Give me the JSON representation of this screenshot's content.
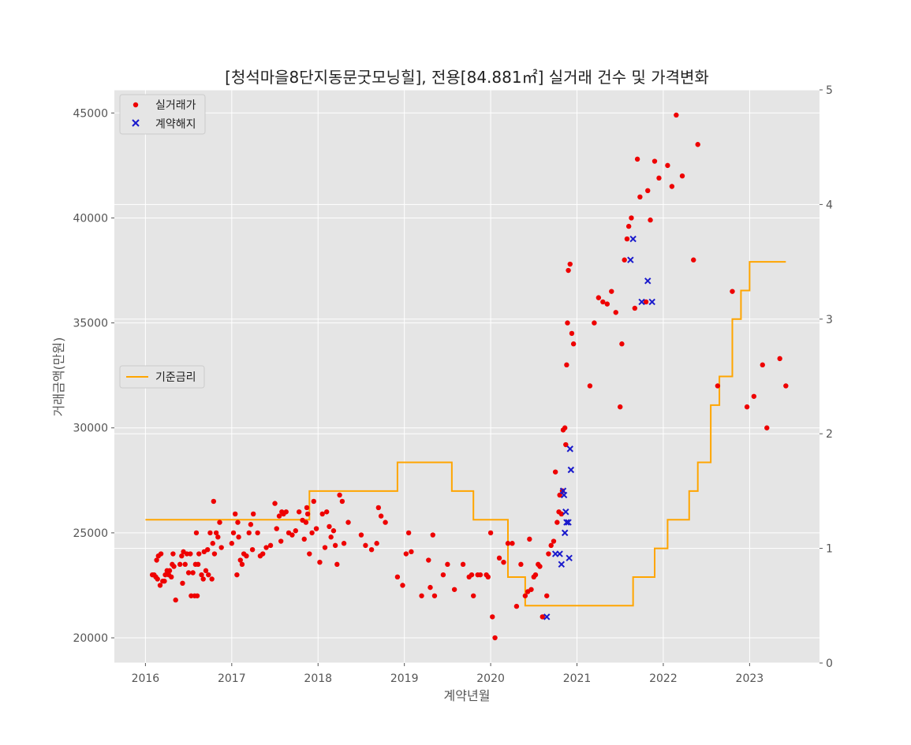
{
  "chart_data": {
    "type": "scatter",
    "title": "[청석마을8단지동문굿모닝힐], 전용[84.881㎡] 실거래 건수 및 가격변화",
    "xlabel": "계약년월",
    "ylabel": "거래금액(만원)",
    "xlim": [
      2015.64,
      2023.81
    ],
    "ylim": [
      18800,
      46100
    ],
    "y2lim": [
      0,
      5
    ],
    "x_ticks": [
      "2016",
      "2017",
      "2018",
      "2019",
      "2020",
      "2021",
      "2022",
      "2023"
    ],
    "y_ticks": [
      20000,
      25000,
      30000,
      35000,
      40000,
      45000
    ],
    "y_tick_labels": [
      "20000",
      "25000",
      "30000",
      "35000",
      "40000",
      "45000"
    ],
    "y2_ticks": [
      0,
      1,
      2,
      3,
      4,
      5
    ],
    "y2_tick_labels": [
      "0",
      "1",
      "2",
      "3",
      "4",
      "5"
    ],
    "grid": true,
    "legend_top": {
      "placement": "top-left",
      "entries": [
        "실거래가",
        "계약해지"
      ]
    },
    "legend_mid": {
      "placement": "center-left",
      "entries": [
        "기준금리"
      ]
    },
    "colors": {
      "trade": "#ee0000",
      "cancel": "#1a1acc",
      "rate": "#ffa500",
      "bg": "#e5e5e5"
    },
    "series": [
      {
        "name": "실거래가",
        "points": [
          [
            2016.08,
            23000
          ],
          [
            2016.1,
            23000
          ],
          [
            2016.12,
            22900
          ],
          [
            2016.13,
            23700
          ],
          [
            2016.14,
            22800
          ],
          [
            2016.15,
            23900
          ],
          [
            2016.17,
            22500
          ],
          [
            2016.18,
            24000
          ],
          [
            2016.2,
            22700
          ],
          [
            2016.22,
            22700
          ],
          [
            2016.23,
            23000
          ],
          [
            2016.25,
            23200
          ],
          [
            2016.27,
            23000
          ],
          [
            2016.28,
            23200
          ],
          [
            2016.3,
            22900
          ],
          [
            2016.31,
            23500
          ],
          [
            2016.32,
            24000
          ],
          [
            2016.33,
            23400
          ],
          [
            2016.35,
            21800
          ],
          [
            2016.4,
            23500
          ],
          [
            2016.42,
            23900
          ],
          [
            2016.43,
            22600
          ],
          [
            2016.44,
            24100
          ],
          [
            2016.46,
            23500
          ],
          [
            2016.48,
            24000
          ],
          [
            2016.5,
            23100
          ],
          [
            2016.52,
            24000
          ],
          [
            2016.53,
            22000
          ],
          [
            2016.55,
            23100
          ],
          [
            2016.57,
            22000
          ],
          [
            2016.58,
            23500
          ],
          [
            2016.59,
            25000
          ],
          [
            2016.6,
            22000
          ],
          [
            2016.61,
            23500
          ],
          [
            2016.62,
            24000
          ],
          [
            2016.65,
            23000
          ],
          [
            2016.67,
            22800
          ],
          [
            2016.68,
            24100
          ],
          [
            2016.7,
            23200
          ],
          [
            2016.72,
            24200
          ],
          [
            2016.73,
            23000
          ],
          [
            2016.75,
            25000
          ],
          [
            2016.77,
            22800
          ],
          [
            2016.78,
            24500
          ],
          [
            2016.79,
            26500
          ],
          [
            2016.8,
            24000
          ],
          [
            2016.82,
            25000
          ],
          [
            2016.84,
            24800
          ],
          [
            2016.86,
            25500
          ],
          [
            2016.88,
            24300
          ],
          [
            2017.0,
            24500
          ],
          [
            2017.02,
            25000
          ],
          [
            2017.04,
            25900
          ],
          [
            2017.06,
            23000
          ],
          [
            2017.07,
            25500
          ],
          [
            2017.08,
            24800
          ],
          [
            2017.1,
            23700
          ],
          [
            2017.12,
            23500
          ],
          [
            2017.14,
            24000
          ],
          [
            2017.17,
            23900
          ],
          [
            2017.2,
            25000
          ],
          [
            2017.22,
            25400
          ],
          [
            2017.24,
            24200
          ],
          [
            2017.25,
            25900
          ],
          [
            2017.3,
            25000
          ],
          [
            2017.33,
            23900
          ],
          [
            2017.36,
            24000
          ],
          [
            2017.4,
            24300
          ],
          [
            2017.45,
            24400
          ],
          [
            2017.5,
            26400
          ],
          [
            2017.52,
            25200
          ],
          [
            2017.55,
            25800
          ],
          [
            2017.57,
            24600
          ],
          [
            2017.58,
            26000
          ],
          [
            2017.6,
            25900
          ],
          [
            2017.63,
            26000
          ],
          [
            2017.66,
            25000
          ],
          [
            2017.7,
            24900
          ],
          [
            2017.74,
            25100
          ],
          [
            2017.78,
            26000
          ],
          [
            2017.82,
            25600
          ],
          [
            2017.84,
            24700
          ],
          [
            2017.86,
            25500
          ],
          [
            2017.87,
            26200
          ],
          [
            2017.88,
            25900
          ],
          [
            2017.9,
            24000
          ],
          [
            2017.93,
            25000
          ],
          [
            2017.95,
            26500
          ],
          [
            2017.98,
            25200
          ],
          [
            2018.02,
            23600
          ],
          [
            2018.05,
            25900
          ],
          [
            2018.08,
            24300
          ],
          [
            2018.1,
            26000
          ],
          [
            2018.13,
            25300
          ],
          [
            2018.15,
            24800
          ],
          [
            2018.18,
            25100
          ],
          [
            2018.2,
            24400
          ],
          [
            2018.22,
            23500
          ],
          [
            2018.25,
            26800
          ],
          [
            2018.28,
            26500
          ],
          [
            2018.3,
            24500
          ],
          [
            2018.35,
            25500
          ],
          [
            2018.5,
            24900
          ],
          [
            2018.55,
            24400
          ],
          [
            2018.62,
            24200
          ],
          [
            2018.68,
            24500
          ],
          [
            2018.7,
            26200
          ],
          [
            2018.73,
            25800
          ],
          [
            2018.78,
            25500
          ],
          [
            2018.92,
            22900
          ],
          [
            2018.98,
            22500
          ],
          [
            2019.02,
            24000
          ],
          [
            2019.05,
            25000
          ],
          [
            2019.08,
            24100
          ],
          [
            2019.2,
            22000
          ],
          [
            2019.28,
            23700
          ],
          [
            2019.3,
            22400
          ],
          [
            2019.33,
            24900
          ],
          [
            2019.35,
            22000
          ],
          [
            2019.45,
            23000
          ],
          [
            2019.5,
            23500
          ],
          [
            2019.58,
            22300
          ],
          [
            2019.68,
            23500
          ],
          [
            2019.75,
            22900
          ],
          [
            2019.78,
            23000
          ],
          [
            2019.8,
            22000
          ],
          [
            2019.85,
            23000
          ],
          [
            2019.88,
            23000
          ],
          [
            2019.95,
            23000
          ],
          [
            2019.97,
            22900
          ],
          [
            2020.0,
            25000
          ],
          [
            2020.02,
            21000
          ],
          [
            2020.05,
            20000
          ],
          [
            2020.1,
            23800
          ],
          [
            2020.15,
            23600
          ],
          [
            2020.2,
            24500
          ],
          [
            2020.25,
            24500
          ],
          [
            2020.3,
            21500
          ],
          [
            2020.35,
            23500
          ],
          [
            2020.4,
            22000
          ],
          [
            2020.43,
            22200
          ],
          [
            2020.45,
            24700
          ],
          [
            2020.47,
            22300
          ],
          [
            2020.5,
            22900
          ],
          [
            2020.52,
            23000
          ],
          [
            2020.55,
            23500
          ],
          [
            2020.57,
            23400
          ],
          [
            2020.6,
            21000
          ],
          [
            2020.65,
            22000
          ],
          [
            2020.67,
            24000
          ],
          [
            2020.7,
            24400
          ],
          [
            2020.73,
            24600
          ],
          [
            2020.75,
            27900
          ],
          [
            2020.77,
            25500
          ],
          [
            2020.79,
            26000
          ],
          [
            2020.8,
            26800
          ],
          [
            2020.82,
            25900
          ],
          [
            2020.83,
            27000
          ],
          [
            2020.84,
            29900
          ],
          [
            2020.86,
            30000
          ],
          [
            2020.87,
            29200
          ],
          [
            2020.88,
            33000
          ],
          [
            2020.89,
            35000
          ],
          [
            2020.9,
            37500
          ],
          [
            2020.92,
            37800
          ],
          [
            2020.94,
            34500
          ],
          [
            2020.96,
            34000
          ],
          [
            2021.15,
            32000
          ],
          [
            2021.2,
            35000
          ],
          [
            2021.25,
            36200
          ],
          [
            2021.3,
            36000
          ],
          [
            2021.35,
            35900
          ],
          [
            2021.4,
            36500
          ],
          [
            2021.45,
            35500
          ],
          [
            2021.5,
            31000
          ],
          [
            2021.52,
            34000
          ],
          [
            2021.55,
            38000
          ],
          [
            2021.58,
            39000
          ],
          [
            2021.6,
            39600
          ],
          [
            2021.63,
            40000
          ],
          [
            2021.67,
            35700
          ],
          [
            2021.7,
            42800
          ],
          [
            2021.73,
            41000
          ],
          [
            2021.8,
            36000
          ],
          [
            2021.82,
            41300
          ],
          [
            2021.85,
            39900
          ],
          [
            2021.9,
            42700
          ],
          [
            2021.95,
            41900
          ],
          [
            2022.05,
            42500
          ],
          [
            2022.1,
            41500
          ],
          [
            2022.15,
            44900
          ],
          [
            2022.22,
            42000
          ],
          [
            2022.35,
            38000
          ],
          [
            2022.4,
            43500
          ],
          [
            2022.63,
            32000
          ],
          [
            2022.8,
            36500
          ],
          [
            2022.97,
            31000
          ],
          [
            2023.05,
            31500
          ],
          [
            2023.15,
            33000
          ],
          [
            2023.2,
            30000
          ],
          [
            2023.35,
            33300
          ],
          [
            2023.42,
            32000
          ]
        ]
      },
      {
        "name": "계약해지",
        "points": [
          [
            2020.65,
            21000
          ],
          [
            2020.75,
            24000
          ],
          [
            2020.8,
            24000
          ],
          [
            2020.82,
            23500
          ],
          [
            2020.84,
            27000
          ],
          [
            2020.85,
            26800
          ],
          [
            2020.86,
            25000
          ],
          [
            2020.87,
            26000
          ],
          [
            2020.88,
            25500
          ],
          [
            2020.9,
            25500
          ],
          [
            2020.91,
            23800
          ],
          [
            2020.92,
            29000
          ],
          [
            2020.93,
            28000
          ],
          [
            2021.62,
            38000
          ],
          [
            2021.65,
            39000
          ],
          [
            2021.75,
            36000
          ],
          [
            2021.82,
            37000
          ],
          [
            2021.87,
            36000
          ]
        ]
      },
      {
        "name": "기준금리",
        "type": "step",
        "x": [
          2016.0,
          2017.9,
          2018.92,
          2019.55,
          2019.8,
          2020.2,
          2020.4,
          2021.65,
          2021.9,
          2022.05,
          2022.3,
          2022.4,
          2022.55,
          2022.65,
          2022.8,
          2022.9,
          2023.0,
          2023.15,
          2023.42
        ],
        "y": [
          1.25,
          1.5,
          1.75,
          1.5,
          1.25,
          0.75,
          0.5,
          0.75,
          1.0,
          1.25,
          1.5,
          1.75,
          2.25,
          2.5,
          3.0,
          3.25,
          3.5,
          3.5,
          3.5
        ]
      }
    ]
  }
}
